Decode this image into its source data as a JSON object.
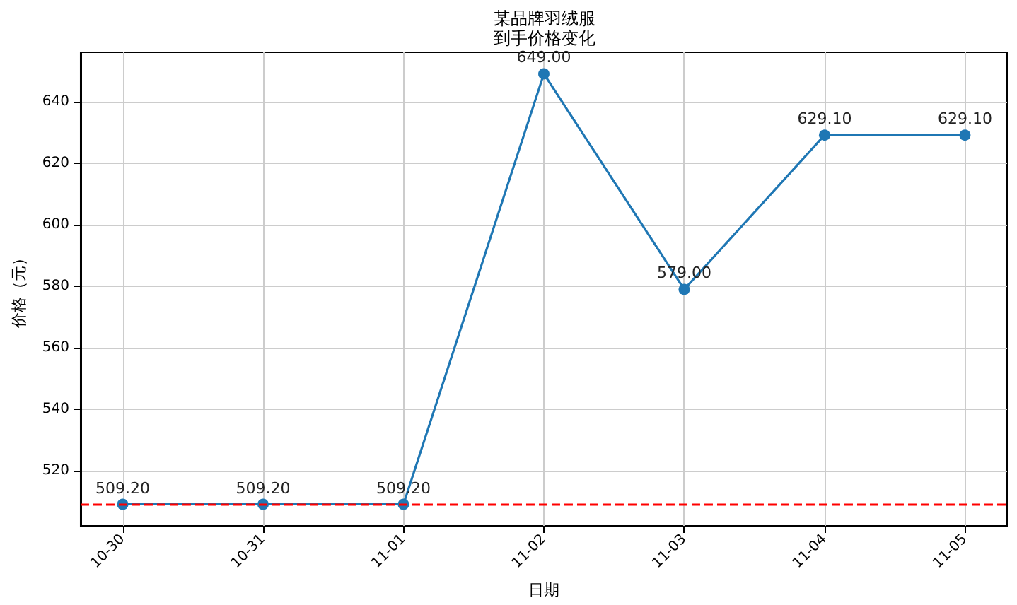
{
  "chart_data": {
    "type": "line",
    "title": "某品牌羽绒服",
    "subtitle": "到手价格变化",
    "xlabel": "日期",
    "ylabel": "价格（元）",
    "categories": [
      "10-30",
      "10-31",
      "11-01",
      "11-02",
      "11-03",
      "11-04",
      "11-05"
    ],
    "series": [
      {
        "color": "#1f77b4",
        "values": [
          509.2,
          509.2,
          509.2,
          649.0,
          579.0,
          629.1,
          629.1
        ],
        "value_labels": [
          "509.20",
          "509.20",
          "509.20",
          "649.00",
          "579.00",
          "629.10",
          "629.10"
        ]
      }
    ],
    "ylim": [
      502.2,
      656.0
    ],
    "yticks": [
      520,
      540,
      560,
      580,
      600,
      620,
      640
    ],
    "grid": true,
    "marker": "circle",
    "line_style": "solid",
    "ref_lines": [
      {
        "axis": "y",
        "value": 509.2,
        "color": "#ff0000",
        "line_style": "dashed"
      }
    ]
  }
}
